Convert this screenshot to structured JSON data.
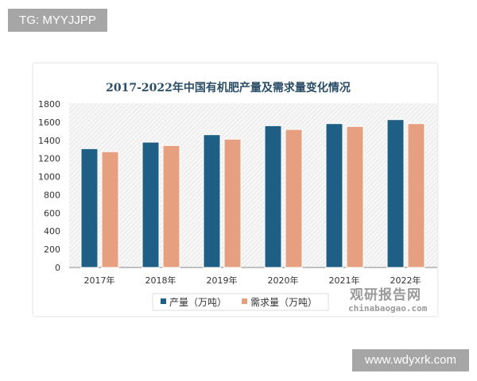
{
  "watermark_top": "TG: MYYJJPP",
  "watermark_bottom": "www.wdyxrk.com",
  "source_logo": {
    "name": "观研报告网",
    "url_text": "chinabaogao.com"
  },
  "chart_data": {
    "type": "bar",
    "title": "2017-2022年中国有机肥产量及需求量变化情况",
    "categories": [
      "2017年",
      "2018年",
      "2019年",
      "2020年",
      "2021年",
      "2022年"
    ],
    "series": [
      {
        "name": "产量（万吨）",
        "color": "#1f5f86",
        "values": [
          1308,
          1380,
          1462,
          1561,
          1584,
          1628
        ]
      },
      {
        "name": "需求量（万吨）",
        "color": "#e6a080",
        "values": [
          1275,
          1343,
          1413,
          1520,
          1553,
          1584
        ]
      }
    ],
    "ylim": [
      0,
      1800
    ],
    "yticks": [
      "0",
      "200",
      "400",
      "600",
      "800",
      "1000",
      "1200",
      "1400",
      "1600",
      "1800"
    ],
    "grid": false,
    "background": "hatched",
    "legend": "bottom"
  }
}
